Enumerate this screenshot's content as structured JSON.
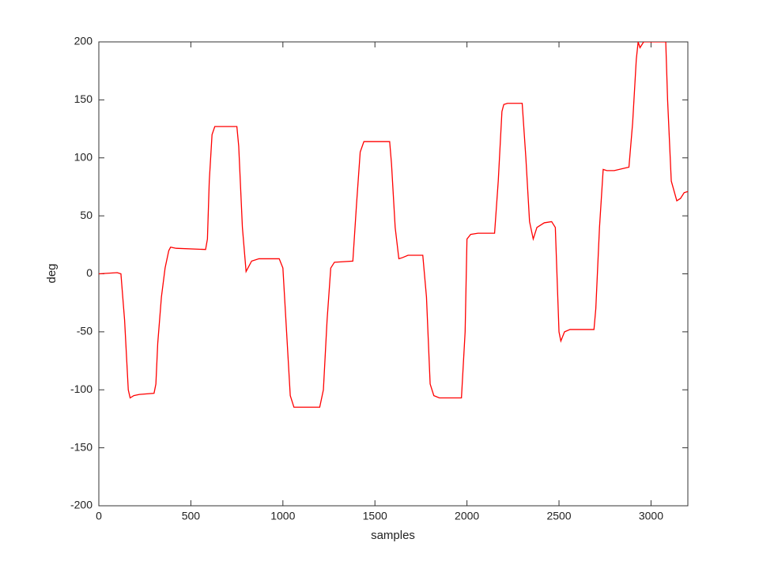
{
  "chart_data": {
    "type": "line",
    "x_label": "samples",
    "y_label": "deg",
    "color": "#ff0000",
    "x": [
      0,
      100,
      120,
      140,
      160,
      170,
      190,
      220,
      300,
      310,
      320,
      340,
      360,
      380,
      390,
      420,
      580,
      590,
      600,
      615,
      630,
      750,
      760,
      780,
      800,
      810,
      830,
      870,
      980,
      1000,
      1020,
      1040,
      1060,
      1100,
      1200,
      1220,
      1240,
      1260,
      1280,
      1380,
      1400,
      1420,
      1440,
      1580,
      1590,
      1610,
      1630,
      1650,
      1680,
      1760,
      1780,
      1800,
      1820,
      1850,
      1970,
      1990,
      2000,
      2020,
      2060,
      2150,
      2170,
      2190,
      2200,
      2220,
      2300,
      2320,
      2340,
      2360,
      2380,
      2420,
      2460,
      2480,
      2500,
      2510,
      2530,
      2560,
      2690,
      2700,
      2720,
      2740,
      2760,
      2800,
      2880,
      2900,
      2920,
      2930,
      2940,
      2960,
      3080,
      3090,
      3110,
      3140,
      3160,
      3180,
      3200
    ],
    "values": [
      0,
      1,
      0,
      -40,
      -100,
      -107,
      -105,
      -104,
      -103,
      -95,
      -60,
      -20,
      5,
      20,
      23,
      22,
      21,
      30,
      80,
      120,
      127,
      127,
      110,
      40,
      2,
      5,
      11,
      13,
      13,
      5,
      -50,
      -105,
      -115,
      -115,
      -115,
      -100,
      -40,
      5,
      10,
      11,
      60,
      105,
      114,
      114,
      95,
      40,
      13,
      14,
      16,
      16,
      -20,
      -95,
      -105,
      -107,
      -107,
      -50,
      30,
      34,
      35,
      35,
      80,
      140,
      146,
      147,
      147,
      100,
      45,
      30,
      40,
      44,
      45,
      40,
      -50,
      -58,
      -50,
      -48,
      -48,
      -30,
      40,
      90,
      89,
      89,
      92,
      130,
      185,
      200,
      195,
      200,
      200,
      150,
      80,
      63,
      65,
      70,
      71
    ],
    "xlim": [
      0,
      3200
    ],
    "xticks": [
      0,
      500,
      1000,
      1500,
      2000,
      2500,
      3000
    ],
    "ylim": [
      -200,
      200
    ],
    "yticks": [
      -200,
      -150,
      -100,
      -50,
      0,
      50,
      100,
      150,
      200
    ],
    "grid": false
  }
}
